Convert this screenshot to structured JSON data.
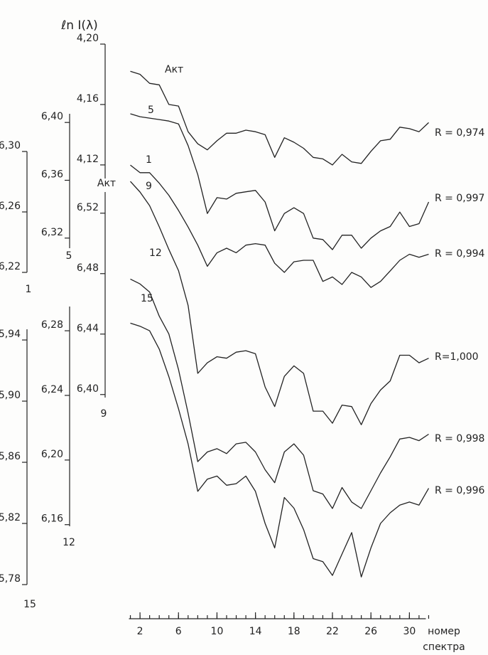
{
  "chart_data": {
    "type": "line",
    "y_title": "ℓn I(λ)",
    "x_label": [
      "номер",
      "спектра"
    ],
    "x": [
      1,
      2,
      3,
      4,
      5,
      6,
      7,
      8,
      9,
      10,
      11,
      12,
      13,
      14,
      15,
      16,
      17,
      18,
      19,
      20,
      21,
      22,
      23,
      24,
      25,
      26,
      27,
      28,
      29,
      30,
      31,
      32
    ],
    "xlim": [
      0,
      33
    ],
    "xticks": [
      2,
      6,
      10,
      14,
      18,
      22,
      26,
      30
    ],
    "color": "#222222",
    "axes": [
      {
        "ylim": [
          4.111,
          4.2
        ],
        "yticks": [
          {
            "value": 4.2,
            "label": "4,20"
          },
          {
            "value": 4.16,
            "label": "4,16"
          },
          {
            "value": 4.12,
            "label": "4,12"
          }
        ]
      },
      {
        "ylim": [
          6.313,
          6.406
        ],
        "yticks": [
          {
            "value": 6.4,
            "label": "6,40"
          },
          {
            "value": 6.36,
            "label": "6,36"
          },
          {
            "value": 6.32,
            "label": "6,32"
          }
        ]
      },
      {
        "ylim": [
          6.22,
          6.3
        ],
        "yticks": [
          {
            "value": 6.3,
            "label": "6,30"
          },
          {
            "value": 6.26,
            "label": "6,26"
          },
          {
            "value": 6.22,
            "label": "6,22"
          }
        ]
      },
      {
        "ylim": [
          6.398,
          6.534
        ],
        "yticks": [
          {
            "value": 6.52,
            "label": "6,52"
          },
          {
            "value": 6.48,
            "label": "6,48"
          },
          {
            "value": 6.44,
            "label": "6,44"
          },
          {
            "value": 6.4,
            "label": "6,40"
          }
        ]
      },
      {
        "ylim": [
          6.159,
          6.295
        ],
        "yticks": [
          {
            "value": 6.28,
            "label": "6,28"
          },
          {
            "value": 6.24,
            "label": "6,24"
          },
          {
            "value": 6.2,
            "label": "6,20"
          },
          {
            "value": 6.16,
            "label": "6,16"
          }
        ]
      },
      {
        "ylim": [
          5.78,
          5.947
        ],
        "yticks": [
          {
            "value": 5.94,
            "label": "5,94"
          },
          {
            "value": 5.9,
            "label": "5,90"
          },
          {
            "value": 5.86,
            "label": "5,86"
          },
          {
            "value": 5.82,
            "label": "5,82"
          },
          {
            "value": 5.78,
            "label": "5,78"
          }
        ]
      }
    ],
    "series": [
      {
        "name": "Акт",
        "axis": 0,
        "annotation": "R = 0,974",
        "values": [
          4.182,
          4.18,
          4.174,
          4.173,
          4.16,
          4.159,
          4.142,
          4.134,
          4.13,
          4.136,
          4.141,
          4.141,
          4.143,
          4.142,
          4.14,
          4.125,
          4.138,
          4.135,
          4.131,
          4.125,
          4.124,
          4.12,
          4.127,
          4.122,
          4.121,
          4.129,
          4.136,
          4.137,
          4.145,
          4.144,
          4.142,
          4.148
        ]
      },
      {
        "name": "5",
        "axis": 1,
        "annotation": "R = 0,997",
        "values": [
          6.406,
          6.404,
          6.403,
          6.402,
          6.401,
          6.399,
          6.384,
          6.364,
          6.337,
          6.348,
          6.347,
          6.351,
          6.352,
          6.353,
          6.345,
          6.325,
          6.337,
          6.341,
          6.337,
          6.32,
          6.319,
          6.312,
          6.322,
          6.322,
          6.313,
          6.32,
          6.325,
          6.328,
          6.338,
          6.328,
          6.33,
          6.345
        ]
      },
      {
        "name": "1",
        "axis": 2,
        "annotation": "R = 0,994",
        "values": [
          6.291,
          6.286,
          6.286,
          6.279,
          6.271,
          6.261,
          6.25,
          6.238,
          6.224,
          6.233,
          6.236,
          6.233,
          6.238,
          6.239,
          6.238,
          6.226,
          6.22,
          6.227,
          6.228,
          6.228,
          6.214,
          6.217,
          6.212,
          6.22,
          6.217,
          6.21,
          6.214,
          6.221,
          6.228,
          6.232,
          6.23,
          6.232
        ]
      },
      {
        "name": "9",
        "axis": 3,
        "annotation": "R=1,000",
        "values": [
          6.541,
          6.534,
          6.525,
          6.511,
          6.496,
          6.482,
          6.459,
          6.414,
          6.421,
          6.425,
          6.424,
          6.428,
          6.429,
          6.427,
          6.405,
          6.392,
          6.412,
          6.419,
          6.414,
          6.389,
          6.389,
          6.381,
          6.393,
          6.392,
          6.38,
          6.394,
          6.403,
          6.409,
          6.426,
          6.426,
          6.421,
          6.424
        ]
      },
      {
        "name": "12",
        "axis": 4,
        "annotation": "R = 0,998",
        "values": [
          6.312,
          6.309,
          6.304,
          6.289,
          6.278,
          6.256,
          6.229,
          6.199,
          6.205,
          6.207,
          6.204,
          6.21,
          6.211,
          6.205,
          6.194,
          6.186,
          6.205,
          6.21,
          6.203,
          6.181,
          6.179,
          6.17,
          6.183,
          6.174,
          6.17,
          6.181,
          6.192,
          6.202,
          6.213,
          6.214,
          6.212,
          6.216
        ]
      },
      {
        "name": "15",
        "axis": 5,
        "annotation": "R = 0,996",
        "values": [
          5.951,
          5.949,
          5.946,
          5.934,
          5.916,
          5.895,
          5.872,
          5.841,
          5.849,
          5.851,
          5.845,
          5.846,
          5.851,
          5.841,
          5.82,
          5.804,
          5.837,
          5.83,
          5.816,
          5.797,
          5.795,
          5.786,
          5.8,
          5.814,
          5.785,
          5.804,
          5.82,
          5.827,
          5.832,
          5.834,
          5.832,
          5.843
        ]
      }
    ]
  }
}
